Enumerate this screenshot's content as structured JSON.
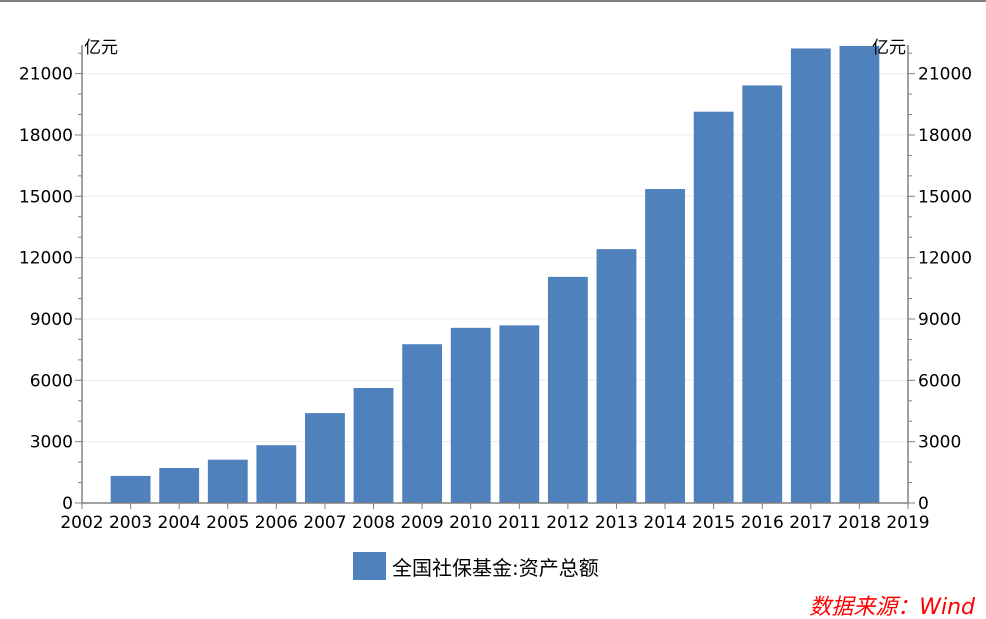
{
  "chart_data": {
    "type": "bar",
    "x_tick_labels": [
      "2002",
      "2003",
      "2004",
      "2005",
      "2006",
      "2007",
      "2008",
      "2009",
      "2010",
      "2011",
      "2012",
      "2013",
      "2014",
      "2015",
      "2016",
      "2017",
      "2018",
      "2019"
    ],
    "categories": [
      "2003",
      "2004",
      "2005",
      "2006",
      "2007",
      "2008",
      "2009",
      "2010",
      "2011",
      "2012",
      "2013",
      "2014",
      "2015",
      "2016",
      "2017",
      "2018"
    ],
    "series": [
      {
        "name": "全国社保基金:资产总额",
        "color": "#4f81bd",
        "values": [
          1325,
          1711,
          2118,
          2828,
          4397,
          5624,
          7766,
          8567,
          8688,
          11060,
          12416,
          15356,
          19138,
          20423,
          22231,
          22354
        ]
      }
    ],
    "y_left_label": "亿元",
    "y_right_label": "亿元",
    "ylim": [
      0,
      22400
    ],
    "y_ticks": [
      0,
      3000,
      6000,
      9000,
      12000,
      15000,
      18000,
      21000
    ],
    "grid": "horizontal",
    "legend_position": "bottom-center",
    "source": "数据来源：Wind"
  }
}
